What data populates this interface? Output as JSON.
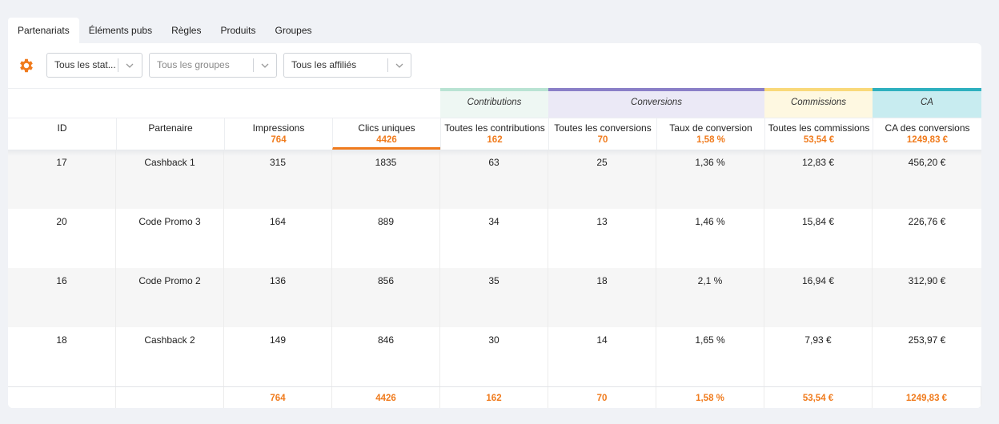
{
  "tabs": [
    "Partenariats",
    "Éléments pubs",
    "Règles",
    "Produits",
    "Groupes"
  ],
  "toolbar": {
    "settings_icon": "gear-icon",
    "filters": [
      {
        "value": "Tous les stat...",
        "placeholder": false
      },
      {
        "value": "Tous les groupes",
        "placeholder": true
      },
      {
        "value": "Tous les affiliés",
        "placeholder": false
      }
    ]
  },
  "colors": {
    "accent": "#f07b1d",
    "contributions": "#b9e3d3",
    "conversions": "#8a7fc7",
    "commissions": "#f9d97a",
    "ca": "#2eb0bf"
  },
  "groups": {
    "contributions": "Contributions",
    "conversions": "Conversions",
    "commissions": "Commissions",
    "ca": "CA"
  },
  "columns": [
    {
      "label": "ID",
      "total": ""
    },
    {
      "label": "Partenaire",
      "total": ""
    },
    {
      "label": "Impressions",
      "total": "764"
    },
    {
      "label": "Clics uniques",
      "total": "4426"
    },
    {
      "label": "Toutes les contributions",
      "total": "162"
    },
    {
      "label": "Toutes les conversions",
      "total": "70"
    },
    {
      "label": "Taux de conversion",
      "total": "1,58 %"
    },
    {
      "label": "Toutes les commissions",
      "total": "53,54 €"
    },
    {
      "label": "CA des conversions",
      "total": "1249,83 €"
    }
  ],
  "rows": [
    [
      "17",
      "Cashback 1",
      "315",
      "1835",
      "63",
      "25",
      "1,36 %",
      "12,83 €",
      "456,20 €"
    ],
    [
      "20",
      "Code Promo 3",
      "164",
      "889",
      "34",
      "13",
      "1,46 %",
      "15,84 €",
      "226,76 €"
    ],
    [
      "16",
      "Code Promo 2",
      "136",
      "856",
      "35",
      "18",
      "2,1 %",
      "16,94 €",
      "312,90 €"
    ],
    [
      "18",
      "Cashback 2",
      "149",
      "846",
      "30",
      "14",
      "1,65 %",
      "7,93 €",
      "253,97 €"
    ]
  ],
  "footer": [
    "",
    "",
    "764",
    "4426",
    "162",
    "70",
    "1,58 %",
    "53,54 €",
    "1249,83 €"
  ]
}
